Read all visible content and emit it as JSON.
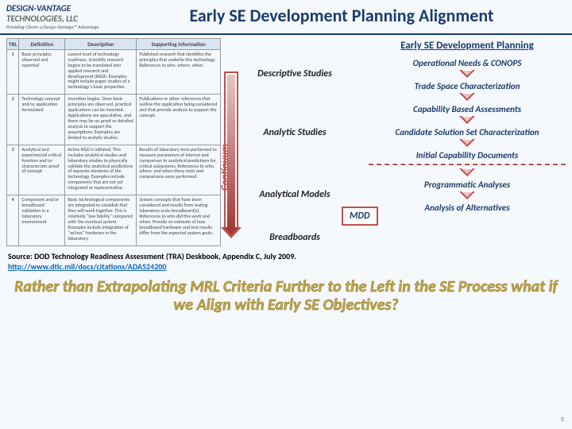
{
  "logo": {
    "line1": "DESIGN-VANTAGE",
    "line2": "TECHNOLOGIES, LLC",
    "sub": "Providing Clients a Design-Vantage™ Advantage"
  },
  "title": "Early SE Development Planning Alignment",
  "table": {
    "headers": [
      "TRL",
      "Definition",
      "Description",
      "Supporting Information"
    ],
    "rows": [
      {
        "n": "1",
        "def": "Basic principles observed and reported",
        "desc": "Lowest level of technology readiness. Scientific research begins to be translated into applied research and development (R&D). Examples might include paper studies of a technology's basic properties.",
        "sup": "Published research that identifies the principles that underlie this technology. References to who, where, when."
      },
      {
        "n": "2",
        "def": "Technology concept and/or application formulated",
        "desc": "Invention begins. Once basic principles are observed, practical applications can be invented. Applications are speculative, and there may be no proof or detailed analysis to support the assumptions. Examples are limited to analytic studies.",
        "sup": "Publications or other references that outline the application being considered and that provide analysis to support the concept."
      },
      {
        "n": "3",
        "def": "Analytical and experimental critical function and/or characteristic proof of concept",
        "desc": "Active R&D is initiated. This includes analytical studies and laboratory studies to physically validate the analytical predictions of separate elements of the technology. Examples include components that are not yet integrated or representative.",
        "sup": "Results of laboratory tests performed to measure parameters of interest and comparison to analytical predictions for critical subsystems. References to who, where, and when these tests and comparisons were performed."
      },
      {
        "n": "4",
        "def": "Component and/or breadboard validation in a laboratory environment",
        "desc": "Basic technological components are integrated to establish that they will work together. This is relatively \"low fidelity\" compared with the eventual system. Examples include integration of \"ad hoc\" hardware in the laboratory.",
        "sup": "System concepts that have been considered and results from testing laboratory-scale breadboard(s). References to who did this work and when. Provide an estimate of how breadboard hardware and test results differ from the expected system goals."
      }
    ]
  },
  "studies": {
    "s1": "Descriptive Studies",
    "s2": "Analytic Studies",
    "s3": "Analytical Models",
    "s4": "Breadboards"
  },
  "continuum_label": "Continuum",
  "right": {
    "title": "Early SE Development Planning",
    "items": [
      "Operational Needs & CONOPS",
      "Trade Space Characterization",
      "Capability Based Assessments",
      "Candidate Solution Set Characterization",
      "Initial Capability Documents",
      "Programmatic Analyses",
      "Analysis of Alternatives"
    ],
    "mdd": "MDD"
  },
  "source": {
    "text": "Source: DOD Technology Readiness Assessment (TRA) Deskbook, Appendix C, July 2009.",
    "link": "http://www.dtic.mil/docs/citations/ADA524200"
  },
  "question": "Rather than Extrapolating MRL Criteria Further to the Left in the SE Process what if we Align with Early SE Objectives?",
  "pagenum": "9"
}
